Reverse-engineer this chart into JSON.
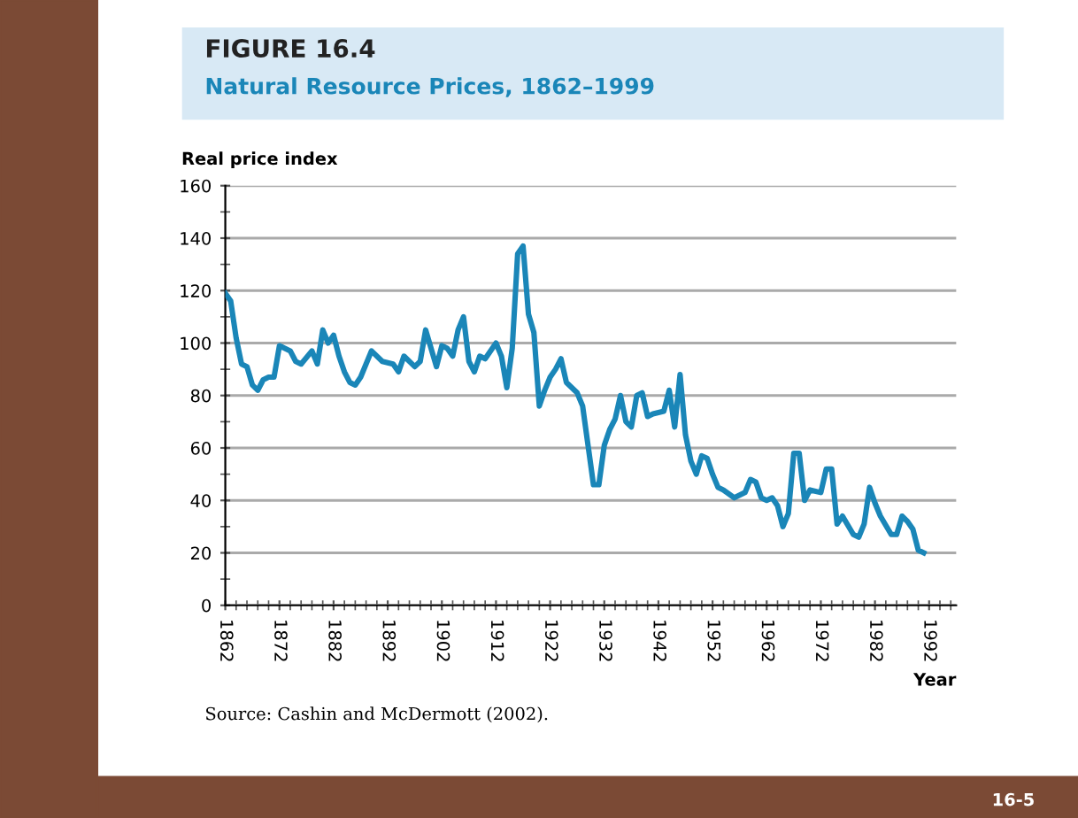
{
  "chart_data": {
    "type": "line",
    "title": "FIGURE 16.4",
    "subtitle": "Natural Resource Prices, 1862–1999",
    "xlabel": "Year",
    "ylabel": "Real price index",
    "annotations": [
      "Source: Cashin and McDermott (2002).",
      "16-5"
    ],
    "x": [
      1862,
      1863,
      1864,
      1865,
      1866,
      1867,
      1868,
      1869,
      1870,
      1871,
      1872,
      1874,
      1875,
      1876,
      1878,
      1879,
      1880,
      1881,
      1882,
      1883,
      1884,
      1885,
      1886,
      1887,
      1889,
      1891,
      1893,
      1894,
      1895,
      1897,
      1898,
      1899,
      1901,
      1902,
      1903,
      1904,
      1905,
      1906,
      1907,
      1908,
      1909,
      1910,
      1912,
      1913,
      1914,
      1915,
      1916,
      1917,
      1918,
      1919,
      1920,
      1921,
      1922,
      1923,
      1924,
      1925,
      1927,
      1928,
      1929,
      1930,
      1931,
      1932,
      1933,
      1934,
      1935,
      1936,
      1937,
      1938,
      1939,
      1940,
      1941,
      1943,
      1944,
      1945,
      1946,
      1947,
      1948,
      1949,
      1950,
      1951,
      1952,
      1953,
      1954,
      1956,
      1958,
      1959,
      1960,
      1961,
      1962,
      1963,
      1964,
      1965,
      1966,
      1967,
      1968,
      1969,
      1970,
      1972,
      1973,
      1974,
      1975,
      1976,
      1978,
      1979,
      1980,
      1981,
      1982,
      1983,
      1985,
      1986,
      1987,
      1988,
      1989,
      1990,
      1991
    ],
    "series": [
      {
        "color": "#1a86b8",
        "values": [
          119,
          116,
          102,
          92,
          91,
          84,
          82,
          86,
          87,
          87,
          99,
          97,
          93,
          92,
          97,
          92,
          105,
          100,
          103,
          95,
          89,
          85,
          84,
          87,
          97,
          93,
          92,
          89,
          95,
          91,
          93,
          105,
          91,
          99,
          98,
          95,
          105,
          110,
          93,
          89,
          95,
          94,
          100,
          95,
          83,
          98,
          134,
          137,
          111,
          104,
          76,
          82,
          87,
          90,
          94,
          85,
          81,
          76,
          61,
          46,
          46,
          61,
          67,
          71,
          80,
          70,
          68,
          80,
          81,
          72,
          73,
          74,
          82,
          68,
          88,
          65,
          55,
          50,
          57,
          56,
          50,
          45,
          44,
          41,
          43,
          48,
          47,
          41,
          40,
          41,
          38,
          30,
          35,
          58,
          58,
          40,
          44,
          43,
          52,
          52,
          31,
          34,
          27,
          26,
          31,
          45,
          39,
          34,
          27,
          27,
          34,
          32,
          29,
          21,
          20
        ]
      }
    ],
    "xlim": [
      1862,
      1997
    ],
    "ylim": [
      0,
      160
    ],
    "xticks": [
      1862,
      1872,
      1882,
      1892,
      1902,
      1912,
      1922,
      1932,
      1942,
      1952,
      1962,
      1972,
      1982,
      1992
    ],
    "yticks": [
      0,
      20,
      40,
      60,
      80,
      100,
      120,
      140,
      160
    ],
    "grid": "y",
    "legend": false,
    "marker": "none",
    "line_style": "solid"
  }
}
